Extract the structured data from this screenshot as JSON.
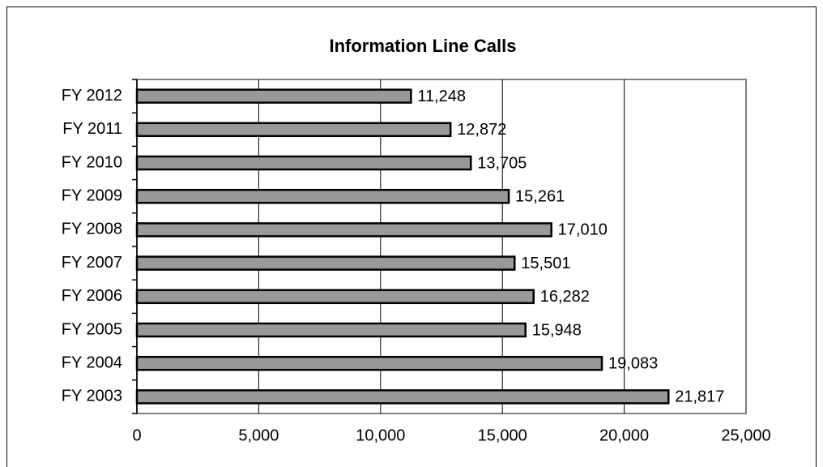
{
  "chart_data": {
    "type": "barh",
    "title": "Information Line Calls",
    "categories": [
      "FY 2012",
      "FY 2011",
      "FY 2010",
      "FY 2009",
      "FY 2008",
      "FY 2007",
      "FY 2006",
      "FY 2005",
      "FY 2004",
      "FY 2003"
    ],
    "values": [
      11248,
      12872,
      13705,
      15261,
      17010,
      15501,
      16282,
      15948,
      19083,
      21817
    ],
    "value_labels": [
      "11,248",
      "12,872",
      "13,705",
      "15,261",
      "17,010",
      "15,501",
      "16,282",
      "15,948",
      "19,083",
      "21,817"
    ],
    "color": "#999999",
    "xlim": [
      0,
      25000
    ],
    "xticks": [
      0,
      {
        "value": 5000,
        "label": "5,000"
      },
      {
        "value": 10000,
        "label": "10,000"
      },
      {
        "value": 15000,
        "label": "15,000"
      },
      {
        "value": 20000,
        "label": "20,000"
      },
      {
        "value": 25000,
        "label": "25,000"
      }
    ],
    "grid": true
  }
}
